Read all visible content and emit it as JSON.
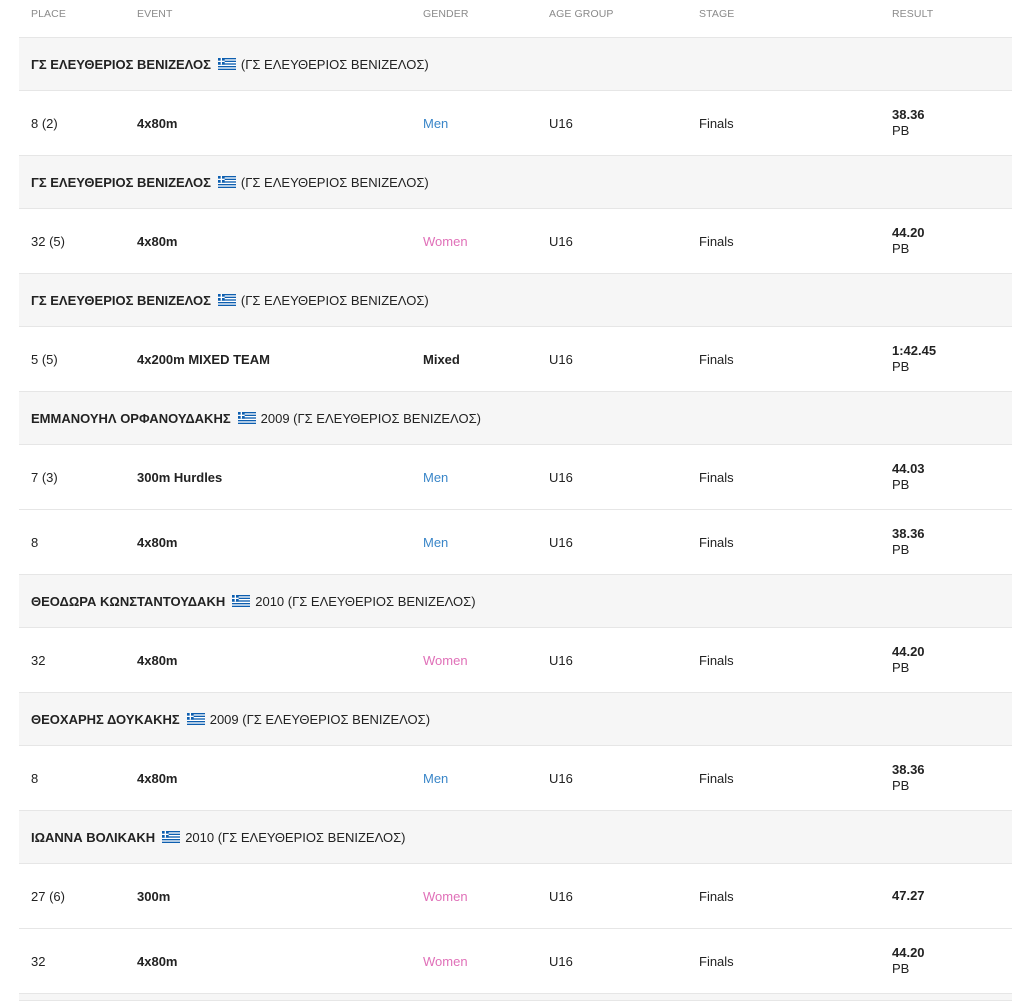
{
  "columns": {
    "place": "PLACE",
    "event": "EVENT",
    "gender": "GENDER",
    "age_group": "AGE GROUP",
    "stage": "STAGE",
    "result": "RESULT"
  },
  "colors": {
    "men": "#3a86c8",
    "women": "#e070b8"
  },
  "groups": [
    {
      "name": "ΓΣ ΕΛΕΥΘΕΡΙΟΣ ΒΕΝΙΖΕΛΟΣ",
      "flag": "greece-flag-icon",
      "extra": "(ΓΣ ΕΛΕΥΘΕΡΙΟΣ ΒΕΝΙΖΕΛΟΣ)",
      "rows": [
        {
          "place": "8 (2)",
          "event": "4x80m",
          "gender": "Men",
          "age": "U16",
          "stage": "Finals",
          "result": "38.36",
          "note": "PB"
        }
      ]
    },
    {
      "name": "ΓΣ ΕΛΕΥΘΕΡΙΟΣ ΒΕΝΙΖΕΛΟΣ",
      "flag": "greece-flag-icon",
      "extra": "(ΓΣ ΕΛΕΥΘΕΡΙΟΣ ΒΕΝΙΖΕΛΟΣ)",
      "rows": [
        {
          "place": "32 (5)",
          "event": "4x80m",
          "gender": "Women",
          "age": "U16",
          "stage": "Finals",
          "result": "44.20",
          "note": "PB"
        }
      ]
    },
    {
      "name": "ΓΣ ΕΛΕΥΘΕΡΙΟΣ ΒΕΝΙΖΕΛΟΣ",
      "flag": "greece-flag-icon",
      "extra": "(ΓΣ ΕΛΕΥΘΕΡΙΟΣ ΒΕΝΙΖΕΛΟΣ)",
      "rows": [
        {
          "place": "5 (5)",
          "event": "4x200m MIXED TEAM",
          "gender": "Mixed",
          "age": "U16",
          "stage": "Finals",
          "result": "1:42.45",
          "note": "PB"
        }
      ]
    },
    {
      "name": "ΕΜΜΑΝΟΥΗΛ ΟΡΦΑΝΟΥΔΑΚΗΣ",
      "flag": "greece-flag-icon",
      "extra": "2009 (ΓΣ ΕΛΕΥΘΕΡΙΟΣ ΒΕΝΙΖΕΛΟΣ)",
      "rows": [
        {
          "place": "7 (3)",
          "event": "300m Hurdles",
          "gender": "Men",
          "age": "U16",
          "stage": "Finals",
          "result": "44.03",
          "note": "PB"
        },
        {
          "place": "8",
          "event": "4x80m",
          "gender": "Men",
          "age": "U16",
          "stage": "Finals",
          "result": "38.36",
          "note": "PB"
        }
      ]
    },
    {
      "name": "ΘΕΟΔΩΡΑ ΚΩΝΣΤΑΝΤΟΥΔΑΚΗ",
      "flag": "greece-flag-icon",
      "extra": "2010 (ΓΣ ΕΛΕΥΘΕΡΙΟΣ ΒΕΝΙΖΕΛΟΣ)",
      "rows": [
        {
          "place": "32",
          "event": "4x80m",
          "gender": "Women",
          "age": "U16",
          "stage": "Finals",
          "result": "44.20",
          "note": "PB"
        }
      ]
    },
    {
      "name": "ΘΕΟΧΑΡΗΣ ΔΟΥΚΑΚΗΣ",
      "flag": "greece-flag-icon",
      "extra": "2009 (ΓΣ ΕΛΕΥΘΕΡΙΟΣ ΒΕΝΙΖΕΛΟΣ)",
      "rows": [
        {
          "place": "8",
          "event": "4x80m",
          "gender": "Men",
          "age": "U16",
          "stage": "Finals",
          "result": "38.36",
          "note": "PB"
        }
      ]
    },
    {
      "name": "ΙΩΑΝΝΑ ΒΟΛΙΚΑΚΗ",
      "flag": "greece-flag-icon",
      "extra": "2010 (ΓΣ ΕΛΕΥΘΕΡΙΟΣ ΒΕΝΙΖΕΛΟΣ)",
      "rows": [
        {
          "place": "27 (6)",
          "event": "300m",
          "gender": "Women",
          "age": "U16",
          "stage": "Finals",
          "result": "47.27",
          "note": ""
        },
        {
          "place": "32",
          "event": "4x80m",
          "gender": "Women",
          "age": "U16",
          "stage": "Finals",
          "result": "44.20",
          "note": "PB"
        }
      ]
    }
  ]
}
